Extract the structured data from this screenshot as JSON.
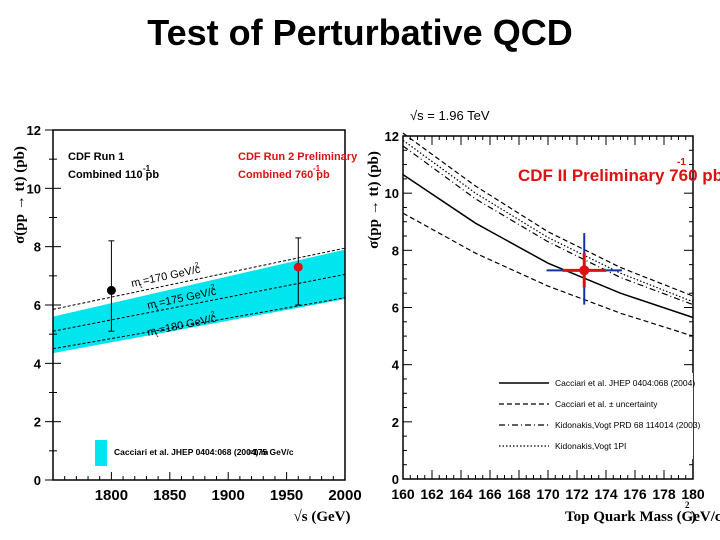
{
  "slide": {
    "title": "Test of Perturbative QCD",
    "energy_label": "√s = 1.96 TeV"
  },
  "chart_data": [
    {
      "type": "scatter",
      "title": "",
      "xlabel": "√s (GeV)",
      "ylabel": "σ(pp → tt) (pb)",
      "xlim": [
        1750,
        2000
      ],
      "ylim": [
        0,
        12
      ],
      "xticks": [
        "1800",
        "1850",
        "1900",
        "1950",
        "2000"
      ],
      "yticks": [
        "0",
        "2",
        "4",
        "6",
        "8",
        "10",
        "12"
      ],
      "annotations": {
        "run1_title": "CDF Run 1",
        "run1_sub": "Combined 110 pb",
        "run1_sup": "-1",
        "run2_title": "CDF Run 2 Preliminary",
        "run2_sub": "Combined 760 pb",
        "run2_sup": "-1",
        "band_170": "m",
        "band_170_text": "=170 GeV/c",
        "band_175_text": "=175 GeV/c",
        "band_180_text": "=180 GeV/c",
        "band_sub": "t",
        "band_sup": "2",
        "legend_text": "Cacciari et al. JHEP 0404:068 (2004) m",
        "legend_text2": "=175 GeV/c"
      },
      "points": [
        {
          "name": "CDF Run 1",
          "x": 1800,
          "y": 6.5,
          "err_low": 1.4,
          "err_high": 1.7,
          "color": "#000000"
        },
        {
          "name": "CDF Run 2 Preliminary",
          "x": 1960,
          "y": 7.3,
          "err_low": 1.3,
          "err_high": 1.0,
          "color": "#dd1111"
        }
      ],
      "band": {
        "x": [
          1750,
          2000
        ],
        "y_low": [
          4.35,
          6.2
        ],
        "y_high": [
          5.6,
          7.9
        ],
        "color": "#00e5ee"
      },
      "lines": [
        {
          "name": "mt=170",
          "x": [
            1750,
            2000
          ],
          "y": [
            5.85,
            7.95
          ]
        },
        {
          "name": "mt=175",
          "x": [
            1750,
            2000
          ],
          "y": [
            5.1,
            7.05
          ]
        },
        {
          "name": "mt=180",
          "x": [
            1750,
            2000
          ],
          "y": [
            4.5,
            6.25
          ]
        }
      ]
    },
    {
      "type": "line",
      "title": "CDF II Preliminary 760 pb",
      "title_sup": "-1",
      "xlabel": "Top Quark Mass (GeV/c",
      "xlabel_sup": "2",
      "xlabel_end": ")",
      "ylabel": "σ(pp → tt) (pb)",
      "xlim": [
        160,
        180
      ],
      "ylim": [
        0,
        12
      ],
      "xticks": [
        "160",
        "162",
        "164",
        "166",
        "168",
        "170",
        "172",
        "174",
        "176",
        "178",
        "180"
      ],
      "yticks": [
        "0",
        "2",
        "4",
        "6",
        "8",
        "10",
        "12"
      ],
      "legend": [
        {
          "label": "Cacciari et al. JHEP 0404:068 (2004)",
          "style": "solid"
        },
        {
          "label": "Cacciari et al. ± uncertainty",
          "style": "dashed"
        },
        {
          "label": "Kidonakis,Vogt PRD 68 114014 (2003)",
          "style": "dashdot"
        },
        {
          "label": "Kidonakis,Vogt 1PI",
          "style": "dotted"
        }
      ],
      "series": [
        {
          "name": "Cacciari central",
          "style": "solid",
          "x": [
            160,
            165,
            170,
            175,
            180
          ],
          "y": [
            10.65,
            8.95,
            7.55,
            6.5,
            5.65
          ]
        },
        {
          "name": "Cacciari upper",
          "style": "dashed",
          "x": [
            160,
            165,
            170,
            175,
            180
          ],
          "y": [
            12.1,
            10.25,
            8.65,
            7.4,
            6.4
          ]
        },
        {
          "name": "Cacciari lower",
          "style": "dashed",
          "x": [
            160,
            165,
            170,
            175,
            180
          ],
          "y": [
            9.3,
            7.9,
            6.75,
            5.8,
            5.0
          ]
        },
        {
          "name": "Kidonakis PRD",
          "style": "dashdot",
          "x": [
            160,
            165,
            170,
            175,
            180
          ],
          "y": [
            11.65,
            9.8,
            8.3,
            7.05,
            6.1
          ]
        },
        {
          "name": "Kidonakis 1PI",
          "style": "dotted",
          "x": [
            160,
            165,
            170,
            175,
            180
          ],
          "y": [
            11.85,
            10.0,
            8.45,
            7.2,
            6.2
          ]
        }
      ],
      "measurement": {
        "x": 172.5,
        "y": 7.3,
        "x_err": 2.6,
        "y_err_low": 1.2,
        "y_err_high": 1.3,
        "color": "#dd1111",
        "x_err_color": "#1133aa"
      }
    }
  ]
}
